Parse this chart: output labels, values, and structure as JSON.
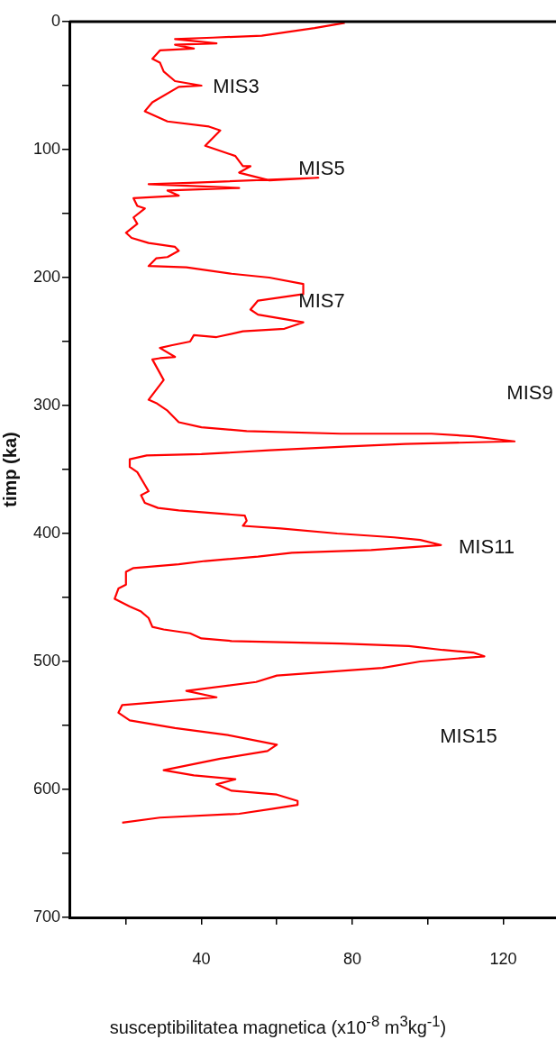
{
  "chart_data": {
    "type": "line",
    "xlabel": "susceptibilitatea magnetica (x10$^{-8}$ m$^{3}$kg$^{-1}$)",
    "ylabel": "timp (ka)",
    "xlim": [
      5,
      134
    ],
    "xticks": [
      {
        "value": 20,
        "label": null
      },
      40,
      {
        "value": 60,
        "label": null
      },
      80,
      {
        "value": 100,
        "label": null
      },
      120
    ],
    "ylim": [
      700,
      0
    ],
    "yticks": [
      0,
      {
        "value": 50,
        "label": null
      },
      100,
      {
        "value": 150,
        "label": null
      },
      200,
      {
        "value": 250,
        "label": null
      },
      300,
      {
        "value": 350,
        "label": null
      },
      400,
      {
        "value": 450,
        "label": null
      },
      500,
      {
        "value": 550,
        "label": null
      },
      600,
      {
        "value": 650,
        "label": null
      },
      700
    ],
    "grid": false,
    "legend": false,
    "annotations": [
      "MIS3",
      "MIS5",
      "MIS7",
      "MIS9",
      "MIS11",
      "MIS15"
    ],
    "series": [
      {
        "color": "#ff0000",
        "x": [
          78,
          70,
          56,
          43,
          33,
          44,
          33,
          38,
          29,
          27,
          29,
          30,
          33,
          40,
          34,
          27,
          25,
          31,
          42,
          45,
          41,
          44,
          49,
          51,
          53,
          50,
          58,
          71,
          37,
          26,
          50,
          31,
          34,
          22,
          23,
          25,
          22,
          23,
          20,
          21.5,
          26,
          33,
          34,
          31,
          28,
          26,
          36,
          48,
          58,
          67,
          67,
          55,
          53,
          55,
          67,
          62,
          51,
          44,
          38,
          37,
          32,
          29,
          33,
          29,
          27,
          30,
          26,
          28,
          31,
          34,
          40,
          52,
          77,
          101,
          112,
          123,
          94,
          79,
          58,
          40,
          25.5,
          21,
          21,
          23,
          25,
          26,
          24,
          25,
          28.5,
          34,
          51.5,
          52,
          51,
          61,
          76,
          91,
          98,
          103.5,
          85,
          64,
          55,
          41,
          34,
          22,
          20,
          20,
          18,
          17,
          21,
          24,
          26,
          27,
          30,
          37,
          40,
          48,
          77,
          95,
          104,
          112,
          115,
          98,
          88,
          60,
          54.5,
          36,
          44,
          19,
          18,
          21,
          33,
          47,
          60,
          57.5,
          45,
          30,
          38,
          49,
          44,
          48,
          60,
          65.5,
          65.5,
          59,
          50,
          29,
          19
        ],
        "values": [
          1,
          5,
          11,
          12.5,
          13.6,
          17,
          18,
          21,
          22.5,
          29,
          32,
          39,
          46.5,
          50,
          51,
          63,
          70,
          78,
          82,
          85,
          97,
          100,
          105,
          113,
          113,
          118,
          124,
          122,
          126,
          127,
          130,
          132,
          136,
          138,
          144,
          146,
          153,
          158,
          165,
          169,
          173,
          176,
          179,
          184,
          185,
          191,
          192,
          197,
          200,
          205,
          213,
          218,
          225,
          229,
          235,
          240,
          242,
          246.5,
          245,
          250,
          253,
          255,
          262,
          263,
          264,
          280,
          295.5,
          298,
          304,
          313,
          317,
          320,
          322,
          322,
          324,
          328,
          330,
          332,
          335,
          338,
          339,
          342,
          348,
          352,
          362,
          367,
          370,
          376,
          380,
          382,
          386,
          390,
          394,
          396,
          400,
          403,
          405,
          409,
          413,
          415,
          418,
          421.5,
          424,
          427,
          430,
          440,
          443,
          451,
          457,
          461,
          466,
          473,
          475,
          478,
          482,
          484,
          486,
          488,
          491,
          493,
          496,
          500,
          505,
          511,
          516,
          523,
          528,
          534,
          540,
          546,
          552,
          557.5,
          565,
          570,
          576,
          585,
          589,
          592,
          596,
          601,
          604,
          609,
          612,
          615,
          619,
          622,
          626
        ]
      }
    ]
  }
}
